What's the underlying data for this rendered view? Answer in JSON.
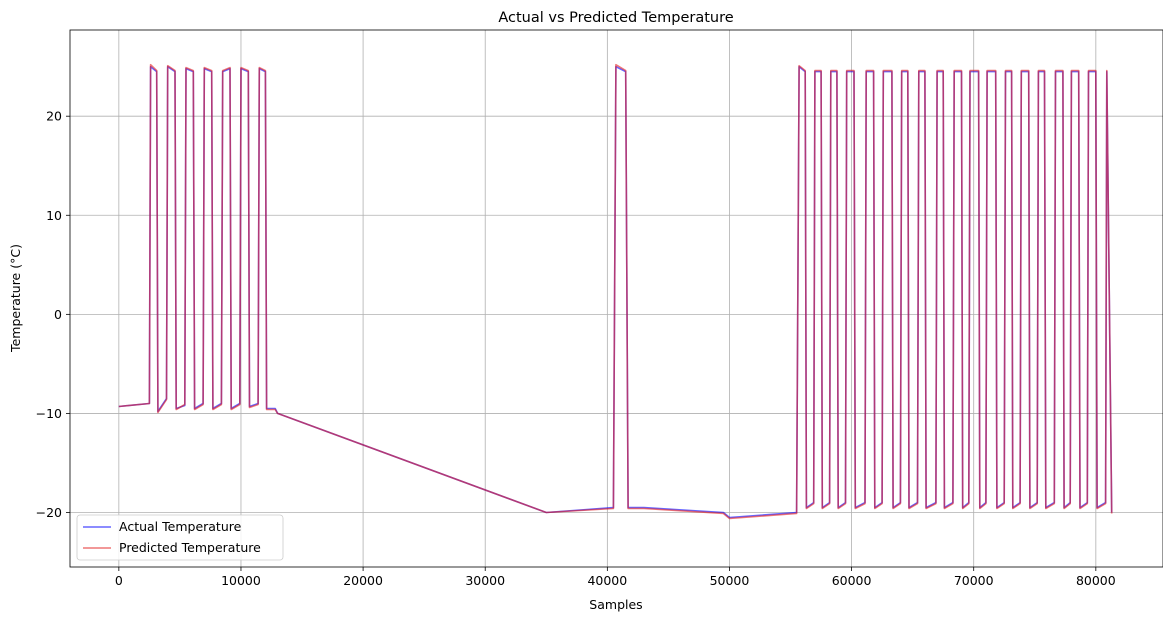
{
  "chart_data": {
    "type": "line",
    "title": "Actual vs Predicted Temperature",
    "xlabel": "Samples",
    "ylabel": "Temperature (°C)",
    "xlim": [
      -4000,
      85500
    ],
    "ylim": [
      -25.5,
      28.7
    ],
    "xticks": [
      0,
      10000,
      20000,
      30000,
      40000,
      50000,
      60000,
      70000,
      80000
    ],
    "xtick_labels": [
      "0",
      "10000",
      "20000",
      "30000",
      "40000",
      "50000",
      "60000",
      "70000",
      "80000"
    ],
    "yticks": [
      -20,
      -10,
      0,
      10,
      20
    ],
    "ytick_labels": [
      "−20",
      "−10",
      "0",
      "10",
      "20"
    ],
    "grid": true,
    "legend_position": "lower-left",
    "series": [
      {
        "name": "Actual Temperature",
        "color": "#0000ff",
        "x": [
          0,
          2500,
          2600,
          3100,
          3200,
          3900,
          4000,
          4600,
          4700,
          5400,
          5500,
          6100,
          6200,
          6900,
          7000,
          7600,
          7700,
          8400,
          8500,
          9100,
          9200,
          9900,
          10000,
          10600,
          10700,
          11400,
          11500,
          12000,
          12100,
          12800,
          13000,
          35000,
          40500,
          40700,
          41500,
          41700,
          43000,
          49500,
          50000,
          55500,
          55700,
          56200,
          56300,
          56900,
          57000,
          57500,
          57600,
          58200,
          58300,
          58800,
          58900,
          59500,
          59600,
          60200,
          60300,
          61100,
          61200,
          61800,
          61900,
          62500,
          62600,
          63300,
          63400,
          64000,
          64100,
          64600,
          64700,
          65400,
          65500,
          66000,
          66100,
          66900,
          67000,
          67500,
          67600,
          68300,
          68400,
          69000,
          69100,
          69600,
          69700,
          70400,
          70500,
          71000,
          71100,
          71800,
          71900,
          72500,
          72600,
          73100,
          73200,
          73800,
          73900,
          74500,
          74600,
          75200,
          75300,
          75800,
          75900,
          76600,
          76700,
          77300,
          77400,
          77900,
          78000,
          78600,
          78700,
          79300,
          79400,
          80000,
          80100,
          80800,
          80900,
          81300
        ],
        "values": [
          -9.3,
          -9.0,
          25.0,
          24.5,
          -9.8,
          -8.5,
          25.0,
          24.5,
          -9.5,
          -9.2,
          24.8,
          24.5,
          -9.5,
          -9.0,
          24.8,
          24.5,
          -9.5,
          -9.0,
          24.5,
          24.8,
          -9.5,
          -9.0,
          24.8,
          24.5,
          -9.3,
          -9.0,
          24.8,
          24.5,
          -9.5,
          -9.5,
          -10.0,
          -20.0,
          -19.5,
          25.0,
          24.5,
          -19.5,
          -19.5,
          -20.0,
          -20.5,
          -20.0,
          25.0,
          24.5,
          -19.5,
          -19.0,
          24.5,
          24.5,
          -19.5,
          -19.0,
          24.5,
          24.5,
          -19.5,
          -19.0,
          24.5,
          24.5,
          -19.5,
          -19.0,
          24.5,
          24.5,
          -19.5,
          -19.0,
          24.5,
          24.5,
          -19.5,
          -19.0,
          24.5,
          24.5,
          -19.5,
          -19.0,
          24.5,
          24.5,
          -19.5,
          -19.0,
          24.5,
          24.5,
          -19.5,
          -19.0,
          24.5,
          24.5,
          -19.5,
          -19.0,
          24.5,
          24.5,
          -19.5,
          -19.0,
          24.5,
          24.5,
          -19.5,
          -19.0,
          24.5,
          24.5,
          -19.5,
          -19.0,
          24.5,
          24.5,
          -19.5,
          -19.0,
          24.5,
          24.5,
          -19.5,
          -19.0,
          24.5,
          24.5,
          -19.5,
          -19.0,
          24.5,
          24.5,
          -19.5,
          -19.0,
          24.5,
          24.5,
          -19.5,
          -19.0,
          24.5,
          -20.0
        ]
      },
      {
        "name": "Predicted Temperature",
        "color": "#e31a1c",
        "x": [
          0,
          2500,
          2600,
          3100,
          3200,
          3900,
          4000,
          4600,
          4700,
          5400,
          5500,
          6100,
          6200,
          6900,
          7000,
          7600,
          7700,
          8400,
          8500,
          9100,
          9200,
          9900,
          10000,
          10600,
          10700,
          11400,
          11500,
          12000,
          12100,
          12800,
          13000,
          35000,
          40500,
          40700,
          41500,
          41700,
          43000,
          49500,
          50000,
          55500,
          55700,
          56200,
          56300,
          56900,
          57000,
          57500,
          57600,
          58200,
          58300,
          58800,
          58900,
          59500,
          59600,
          60200,
          60300,
          61100,
          61200,
          61800,
          61900,
          62500,
          62600,
          63300,
          63400,
          64000,
          64100,
          64600,
          64700,
          65400,
          65500,
          66000,
          66100,
          66900,
          67000,
          67500,
          67600,
          68300,
          68400,
          69000,
          69100,
          69600,
          69700,
          70400,
          70500,
          71000,
          71100,
          71800,
          71900,
          72500,
          72600,
          73100,
          73200,
          73800,
          73900,
          74500,
          74600,
          75200,
          75300,
          75800,
          75900,
          76600,
          76700,
          77300,
          77400,
          77900,
          78000,
          78600,
          78700,
          79300,
          79400,
          80000,
          80100,
          80800,
          80900,
          81300
        ],
        "values": [
          -9.3,
          -9.0,
          25.2,
          24.6,
          -9.9,
          -8.6,
          25.1,
          24.6,
          -9.6,
          -9.1,
          24.9,
          24.6,
          -9.6,
          -9.1,
          24.9,
          24.6,
          -9.6,
          -9.1,
          24.6,
          24.9,
          -9.6,
          -9.1,
          24.9,
          24.6,
          -9.4,
          -9.1,
          24.9,
          24.6,
          -9.6,
          -9.6,
          -10.0,
          -20.0,
          -19.6,
          25.2,
          24.6,
          -19.6,
          -19.6,
          -20.1,
          -20.6,
          -20.1,
          25.1,
          24.6,
          -19.6,
          -19.1,
          24.6,
          24.6,
          -19.6,
          -19.1,
          24.6,
          24.6,
          -19.6,
          -19.1,
          24.6,
          24.6,
          -19.6,
          -19.1,
          24.6,
          24.6,
          -19.6,
          -19.1,
          24.6,
          24.6,
          -19.6,
          -19.1,
          24.6,
          24.6,
          -19.6,
          -19.1,
          24.6,
          24.6,
          -19.6,
          -19.1,
          24.6,
          24.6,
          -19.6,
          -19.1,
          24.6,
          24.6,
          -19.6,
          -19.1,
          24.6,
          24.6,
          -19.6,
          -19.1,
          24.6,
          24.6,
          -19.6,
          -19.1,
          24.6,
          24.6,
          -19.6,
          -19.1,
          24.6,
          24.6,
          -19.6,
          -19.1,
          24.6,
          24.6,
          -19.6,
          -19.1,
          24.6,
          24.6,
          -19.6,
          -19.1,
          24.6,
          24.6,
          -19.6,
          -19.1,
          24.6,
          24.6,
          -19.6,
          -19.1,
          24.6,
          -20.1
        ]
      }
    ]
  }
}
